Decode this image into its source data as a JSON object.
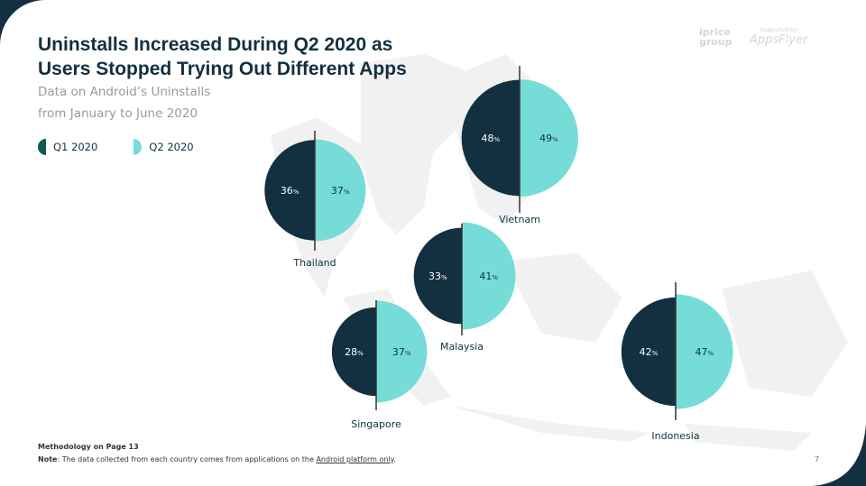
{
  "header": {
    "title_line1": "Uninstalls Increased During Q2 2020 as",
    "title_line2": "Users Stopped Trying Out Different Apps",
    "subtitle_line1": "Data on Android’s Uninstalls",
    "subtitle_line2": "from January to June 2020"
  },
  "logos": {
    "iprice": "iprice group",
    "supported_by": "Supported by",
    "appsflyer": "AppsFlyer"
  },
  "footer": {
    "methodology": "Methodology on Page 13",
    "note_label": "Note",
    "note_text": ": The data collected from each country comes from applications on the ",
    "note_link": "Android platform only",
    "note_end": ".",
    "page_number": "7"
  },
  "chart_data": {
    "type": "split-half-circle map",
    "series": [
      {
        "name": "Q1 2020",
        "color": "#12303f"
      },
      {
        "name": "Q2 2020",
        "color": "#76dcd8"
      }
    ],
    "unit": "%",
    "countries": [
      {
        "name": "Thailand",
        "q1": 36,
        "q2": 37
      },
      {
        "name": "Vietnam",
        "q1": 48,
        "q2": 49
      },
      {
        "name": "Malaysia",
        "q1": 33,
        "q2": 41
      },
      {
        "name": "Singapore",
        "q1": 28,
        "q2": 37
      },
      {
        "name": "Indonesia",
        "q1": 42,
        "q2": 47
      }
    ]
  },
  "colors": {
    "dark": "#12303f",
    "teal": "#76dcd8",
    "map": "#f0f0f0"
  }
}
